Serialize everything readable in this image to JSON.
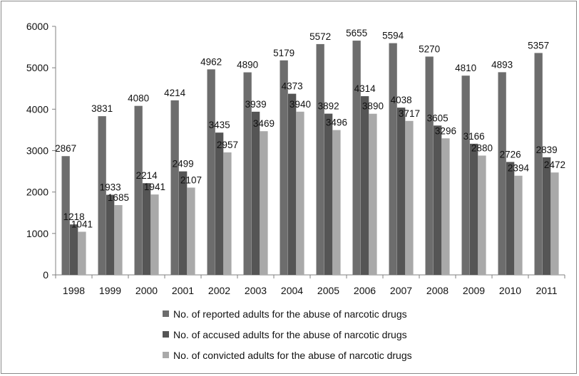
{
  "chart_data": {
    "type": "bar",
    "title": "",
    "xlabel": "",
    "ylabel": "",
    "ylim": [
      0,
      6000
    ],
    "yticks": [
      0,
      1000,
      2000,
      3000,
      4000,
      5000,
      6000
    ],
    "grid": false,
    "legend_position": "bottom",
    "categories": [
      "1998",
      "1999",
      "2000",
      "2001",
      "2002",
      "2003",
      "2004",
      "2005",
      "2006",
      "2007",
      "2008",
      "2009",
      "2010",
      "2011"
    ],
    "series": [
      {
        "name": "No. of reported adults for the abuse of narcotic drugs",
        "color": "#6d6d6d",
        "values": [
          2867,
          3831,
          4080,
          4214,
          4962,
          4890,
          5179,
          5572,
          5655,
          5594,
          5270,
          4810,
          4893,
          5357
        ]
      },
      {
        "name": "No. of accused adults for the abuse of narcotic drugs",
        "color": "#555555",
        "values": [
          1218,
          1933,
          2214,
          2499,
          3435,
          3939,
          4373,
          3892,
          4314,
          4038,
          3605,
          3166,
          2726,
          2839
        ]
      },
      {
        "name": "No. of convicted adults for the abuse of narcotic drugs",
        "color": "#a9a9a9",
        "values": [
          1041,
          1685,
          1941,
          2107,
          2957,
          3469,
          3940,
          3496,
          3890,
          3717,
          3296,
          2880,
          2394,
          2472
        ]
      }
    ]
  }
}
